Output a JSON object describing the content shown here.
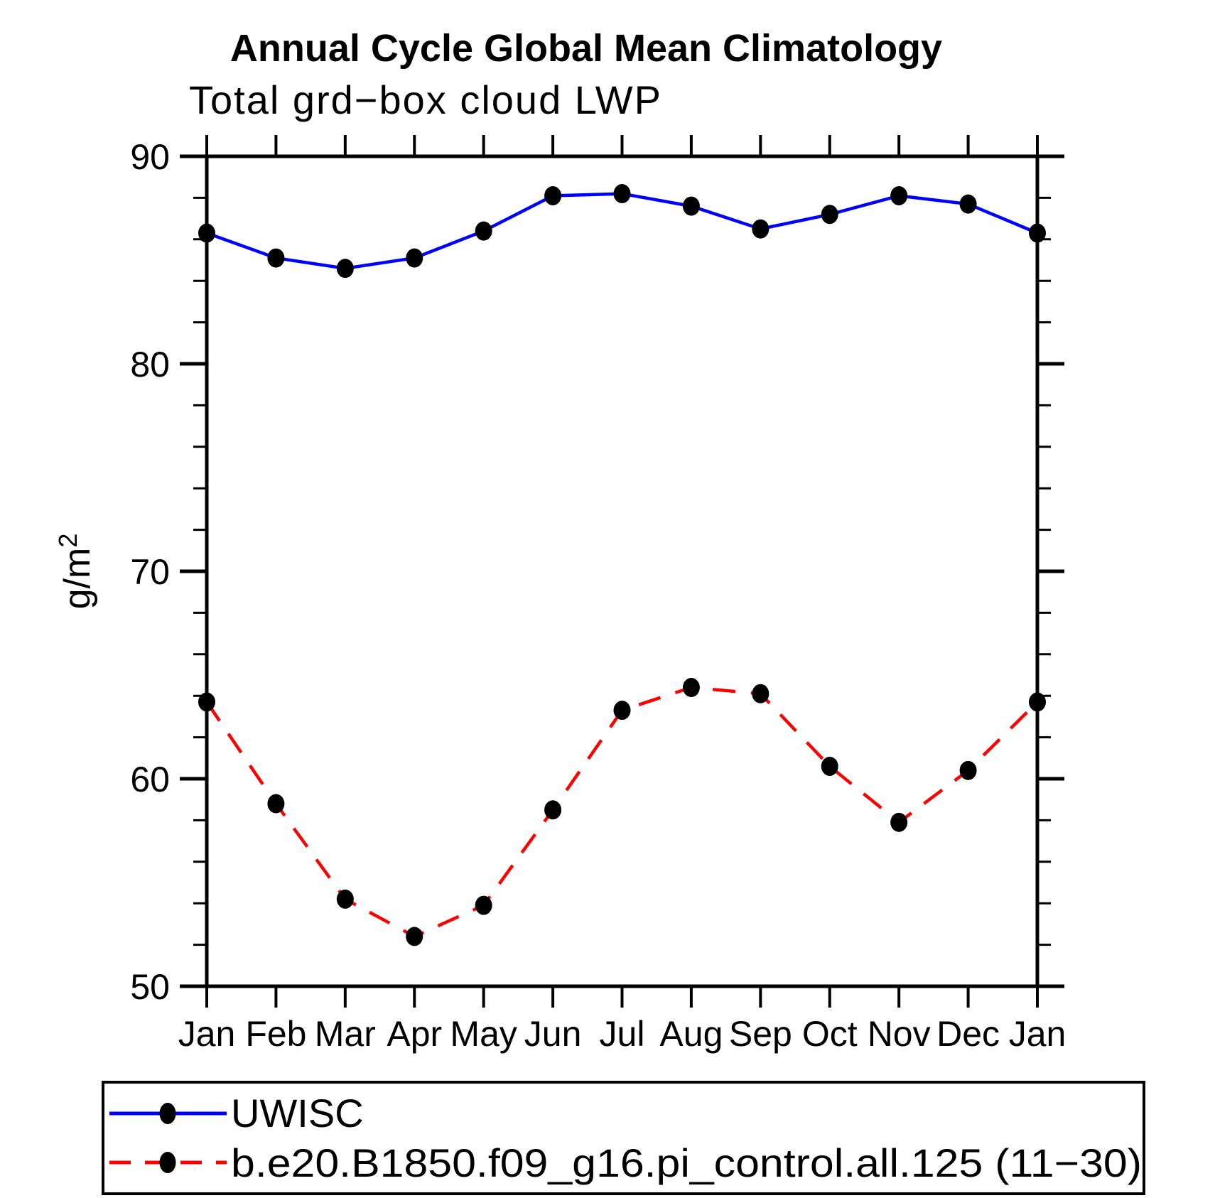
{
  "figure": {
    "title": "Annual Cycle Global Mean Climatology",
    "subtitle": "Total grd−box cloud LWP",
    "ylabel_main": "g/m",
    "ylabel_sup": "2"
  },
  "chart_data": {
    "type": "line",
    "title": "Annual Cycle Global Mean Climatology",
    "subtitle": "Total grd−box cloud LWP",
    "ylabel": "g/m^2",
    "xlabel": "",
    "ylim": [
      50,
      90
    ],
    "y_major_ticks": [
      50,
      60,
      70,
      80,
      90
    ],
    "y_minor_step": 2,
    "grid": false,
    "legend_position": "bottom",
    "frame_color": "#000000",
    "marker_color": "#000000",
    "categories": [
      "Jan",
      "Feb",
      "Mar",
      "Apr",
      "May",
      "Jun",
      "Jul",
      "Aug",
      "Sep",
      "Oct",
      "Nov",
      "Dec",
      "Jan"
    ],
    "series": [
      {
        "name": "UWISC",
        "color": "#0000ff",
        "line_style": "solid",
        "marker": "filled-circle",
        "values": [
          86.3,
          85.1,
          84.6,
          85.1,
          86.4,
          88.1,
          88.2,
          87.6,
          86.5,
          87.2,
          88.1,
          87.7,
          86.3
        ]
      },
      {
        "name": "b.e20.B1850.f09_g16.pi_control.all.125 (11−30)",
        "color": "#ff0000",
        "line_style": "dashed",
        "marker": "filled-circle",
        "values": [
          63.7,
          58.8,
          54.2,
          52.4,
          53.9,
          58.5,
          63.3,
          64.4,
          64.1,
          60.6,
          57.9,
          60.4,
          63.7
        ]
      }
    ]
  }
}
